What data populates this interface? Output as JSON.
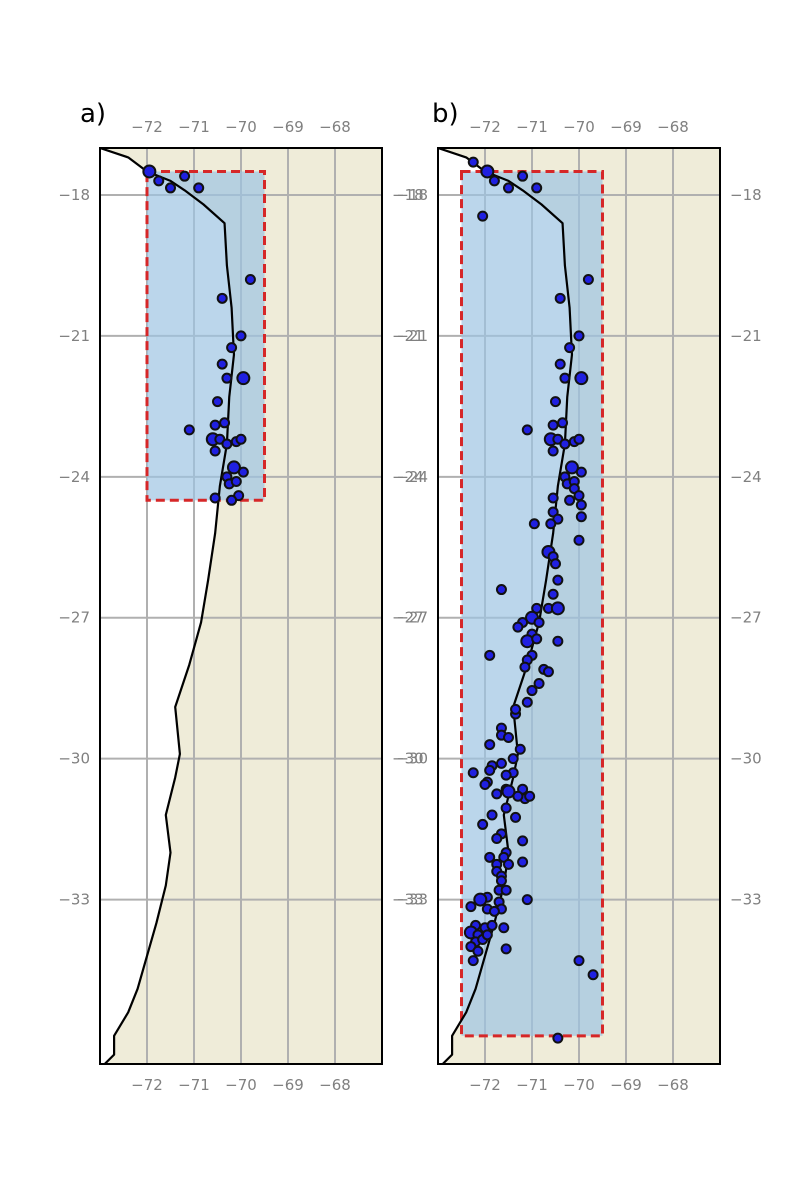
{
  "colors": {
    "land": "#efecd9",
    "region_fill": "#9ec4e3",
    "region_edge": "#d62728",
    "quake_fill": "#2020e0",
    "grid": "#b0b0b0",
    "tick": "#808080"
  },
  "map_extent": {
    "lon": [
      -73.0,
      -67.0
    ],
    "lat": [
      -36.5,
      -17.0
    ]
  },
  "gridlines": {
    "lon": [
      -72,
      -71,
      -70,
      -69,
      -68
    ],
    "lat": [
      -18,
      -21,
      -24,
      -27,
      -30,
      -33
    ]
  },
  "lon_tick_labels": [
    "−72",
    "−71",
    "−70",
    "−69",
    "−68"
  ],
  "lat_tick_labels": [
    "−18",
    "−21",
    "−24",
    "−27",
    "−30",
    "−33"
  ],
  "coastline": [
    [
      -73.0,
      -17.0
    ],
    [
      -72.4,
      -17.2
    ],
    [
      -72.0,
      -17.5
    ],
    [
      -71.5,
      -17.7
    ],
    [
      -71.2,
      -17.9
    ],
    [
      -70.8,
      -18.2
    ],
    [
      -70.35,
      -18.6
    ],
    [
      -70.3,
      -19.5
    ],
    [
      -70.2,
      -20.4
    ],
    [
      -70.15,
      -21.4
    ],
    [
      -70.25,
      -22.3
    ],
    [
      -70.3,
      -23.3
    ],
    [
      -70.45,
      -24.2
    ],
    [
      -70.55,
      -25.2
    ],
    [
      -70.7,
      -26.2
    ],
    [
      -70.85,
      -27.1
    ],
    [
      -71.1,
      -28.0
    ],
    [
      -71.4,
      -28.9
    ],
    [
      -71.3,
      -29.9
    ],
    [
      -71.4,
      -30.4
    ],
    [
      -71.6,
      -31.2
    ],
    [
      -71.5,
      -32.0
    ],
    [
      -71.6,
      -32.7
    ],
    [
      -71.8,
      -33.5
    ],
    [
      -72.0,
      -34.2
    ],
    [
      -72.2,
      -34.9
    ],
    [
      -72.4,
      -35.4
    ],
    [
      -72.7,
      -35.9
    ],
    [
      -72.7,
      -36.3
    ],
    [
      -72.9,
      -36.5
    ]
  ],
  "panels": [
    {
      "label": "a)",
      "region": {
        "lon": [
          -72.0,
          -69.5
        ],
        "lat": [
          -24.5,
          -17.5
        ]
      },
      "events": [
        [
          -71.95,
          -17.5,
          2
        ],
        [
          -71.75,
          -17.7,
          1
        ],
        [
          -71.5,
          -17.85,
          1
        ],
        [
          -71.2,
          -17.6,
          1
        ],
        [
          -70.9,
          -17.85,
          1
        ],
        [
          -69.8,
          -19.8,
          1
        ],
        [
          -70.4,
          -20.2,
          1
        ],
        [
          -70.0,
          -21.0,
          1
        ],
        [
          -70.2,
          -21.25,
          1
        ],
        [
          -70.4,
          -21.6,
          1
        ],
        [
          -69.95,
          -21.9,
          2
        ],
        [
          -70.3,
          -21.9,
          1
        ],
        [
          -70.5,
          -22.4,
          1
        ],
        [
          -71.1,
          -23.0,
          1
        ],
        [
          -70.55,
          -22.9,
          1
        ],
        [
          -70.35,
          -22.85,
          1
        ],
        [
          -70.6,
          -23.2,
          2
        ],
        [
          -70.55,
          -23.45,
          1
        ],
        [
          -70.45,
          -23.2,
          1
        ],
        [
          -70.3,
          -23.3,
          1
        ],
        [
          -70.1,
          -23.25,
          1
        ],
        [
          -70.0,
          -23.2,
          1
        ],
        [
          -70.15,
          -23.8,
          2
        ],
        [
          -69.95,
          -23.9,
          1
        ],
        [
          -70.3,
          -24.0,
          1
        ],
        [
          -70.25,
          -24.15,
          1
        ],
        [
          -70.1,
          -24.1,
          1
        ],
        [
          -70.05,
          -24.4,
          1
        ],
        [
          -70.55,
          -24.45,
          1
        ],
        [
          -70.2,
          -24.5,
          1
        ]
      ]
    },
    {
      "label": "b)",
      "region": {
        "lon": [
          -72.5,
          -69.5
        ],
        "lat": [
          -35.9,
          -17.5
        ]
      },
      "events": [
        [
          -72.25,
          -17.3,
          1
        ],
        [
          -71.95,
          -17.5,
          2
        ],
        [
          -71.8,
          -17.7,
          1
        ],
        [
          -71.5,
          -17.85,
          1
        ],
        [
          -71.2,
          -17.6,
          1
        ],
        [
          -70.9,
          -17.85,
          1
        ],
        [
          -72.05,
          -18.45,
          1
        ],
        [
          -69.8,
          -19.8,
          1
        ],
        [
          -70.4,
          -20.2,
          1
        ],
        [
          -70.0,
          -21.0,
          1
        ],
        [
          -70.2,
          -21.25,
          1
        ],
        [
          -70.4,
          -21.6,
          1
        ],
        [
          -69.95,
          -21.9,
          2
        ],
        [
          -70.3,
          -21.9,
          1
        ],
        [
          -70.5,
          -22.4,
          1
        ],
        [
          -71.1,
          -23.0,
          1
        ],
        [
          -70.55,
          -22.9,
          1
        ],
        [
          -70.35,
          -22.85,
          1
        ],
        [
          -70.6,
          -23.2,
          2
        ],
        [
          -70.55,
          -23.45,
          1
        ],
        [
          -70.45,
          -23.2,
          1
        ],
        [
          -70.3,
          -23.3,
          1
        ],
        [
          -70.1,
          -23.25,
          1
        ],
        [
          -70.0,
          -23.2,
          1
        ],
        [
          -70.15,
          -23.8,
          2
        ],
        [
          -69.95,
          -23.9,
          1
        ],
        [
          -70.3,
          -24.0,
          1
        ],
        [
          -70.25,
          -24.15,
          1
        ],
        [
          -70.1,
          -24.1,
          1
        ],
        [
          -70.2,
          -24.5,
          1
        ],
        [
          -70.55,
          -24.45,
          1
        ],
        [
          -70.1,
          -24.25,
          1
        ],
        [
          -70.0,
          -24.4,
          1
        ],
        [
          -69.95,
          -24.6,
          1
        ],
        [
          -70.55,
          -24.75,
          1
        ],
        [
          -70.45,
          -24.9,
          1
        ],
        [
          -70.6,
          -25.0,
          1
        ],
        [
          -70.95,
          -25.0,
          1
        ],
        [
          -69.95,
          -24.85,
          1
        ],
        [
          -70.0,
          -25.35,
          1
        ],
        [
          -70.65,
          -25.6,
          2
        ],
        [
          -70.55,
          -25.7,
          1
        ],
        [
          -70.5,
          -25.85,
          1
        ],
        [
          -70.45,
          -26.2,
          1
        ],
        [
          -70.55,
          -26.5,
          1
        ],
        [
          -70.65,
          -26.8,
          1
        ],
        [
          -70.45,
          -26.8,
          2
        ],
        [
          -70.9,
          -26.8,
          1
        ],
        [
          -71.0,
          -27.0,
          2
        ],
        [
          -70.85,
          -27.1,
          1
        ],
        [
          -71.2,
          -27.1,
          1
        ],
        [
          -71.0,
          -27.35,
          1
        ],
        [
          -71.1,
          -27.5,
          2
        ],
        [
          -71.3,
          -27.2,
          1
        ],
        [
          -70.9,
          -27.45,
          1
        ],
        [
          -70.45,
          -27.5,
          1
        ],
        [
          -71.0,
          -27.8,
          1
        ],
        [
          -71.1,
          -27.9,
          1
        ],
        [
          -71.15,
          -28.05,
          1
        ],
        [
          -71.9,
          -27.8,
          1
        ],
        [
          -70.75,
          -28.1,
          1
        ],
        [
          -70.65,
          -28.15,
          1
        ],
        [
          -70.85,
          -28.4,
          1
        ],
        [
          -71.0,
          -28.55,
          1
        ],
        [
          -71.1,
          -28.8,
          1
        ],
        [
          -71.35,
          -29.05,
          1
        ],
        [
          -71.35,
          -28.95,
          1
        ],
        [
          -71.65,
          -26.4,
          1
        ],
        [
          -71.65,
          -29.35,
          1
        ],
        [
          -71.65,
          -29.5,
          1
        ],
        [
          -71.9,
          -29.7,
          1
        ],
        [
          -71.5,
          -29.55,
          1
        ],
        [
          -71.25,
          -29.8,
          1
        ],
        [
          -71.4,
          -30.0,
          1
        ],
        [
          -71.65,
          -30.1,
          1
        ],
        [
          -71.4,
          -30.3,
          1
        ],
        [
          -71.55,
          -30.35,
          1
        ],
        [
          -71.85,
          -30.15,
          1
        ],
        [
          -71.9,
          -30.25,
          1
        ],
        [
          -72.25,
          -30.3,
          1
        ],
        [
          -71.95,
          -30.5,
          1
        ],
        [
          -72.0,
          -30.55,
          1
        ],
        [
          -71.55,
          -30.65,
          1
        ],
        [
          -71.5,
          -30.7,
          2
        ],
        [
          -71.2,
          -30.65,
          1
        ],
        [
          -71.15,
          -30.85,
          1
        ],
        [
          -71.05,
          -30.8,
          1
        ],
        [
          -71.3,
          -30.8,
          1
        ],
        [
          -71.75,
          -30.75,
          1
        ],
        [
          -71.55,
          -31.05,
          1
        ],
        [
          -71.85,
          -31.2,
          1
        ],
        [
          -72.05,
          -31.4,
          1
        ],
        [
          -71.35,
          -31.25,
          1
        ],
        [
          -71.65,
          -31.6,
          1
        ],
        [
          -71.75,
          -31.7,
          1
        ],
        [
          -71.2,
          -31.75,
          1
        ],
        [
          -71.55,
          -32.0,
          1
        ],
        [
          -71.6,
          -32.1,
          1
        ],
        [
          -71.9,
          -32.1,
          1
        ],
        [
          -71.75,
          -32.25,
          1
        ],
        [
          -71.5,
          -32.25,
          1
        ],
        [
          -71.2,
          -32.2,
          1
        ],
        [
          -71.75,
          -32.4,
          1
        ],
        [
          -71.65,
          -32.5,
          1
        ],
        [
          -71.65,
          -32.6,
          1
        ],
        [
          -71.7,
          -32.8,
          1
        ],
        [
          -71.55,
          -32.8,
          1
        ],
        [
          -71.95,
          -32.95,
          1
        ],
        [
          -72.1,
          -33.0,
          2
        ],
        [
          -71.95,
          -33.2,
          1
        ],
        [
          -72.3,
          -33.15,
          1
        ],
        [
          -71.7,
          -33.05,
          1
        ],
        [
          -71.65,
          -33.2,
          1
        ],
        [
          -71.8,
          -33.25,
          1
        ],
        [
          -71.1,
          -33.0,
          1
        ],
        [
          -72.2,
          -33.55,
          1
        ],
        [
          -72.0,
          -33.6,
          1
        ],
        [
          -71.85,
          -33.55,
          1
        ],
        [
          -71.6,
          -33.6,
          1
        ],
        [
          -72.3,
          -33.7,
          2
        ],
        [
          -72.15,
          -33.75,
          1
        ],
        [
          -72.2,
          -33.9,
          1
        ],
        [
          -72.05,
          -33.85,
          1
        ],
        [
          -71.95,
          -33.75,
          1
        ],
        [
          -72.3,
          -34.0,
          1
        ],
        [
          -71.55,
          -34.05,
          1
        ],
        [
          -72.15,
          -34.1,
          1
        ],
        [
          -72.25,
          -34.3,
          1
        ],
        [
          -70.0,
          -34.3,
          1
        ],
        [
          -69.7,
          -34.6,
          1
        ],
        [
          -70.45,
          -35.95,
          1
        ]
      ]
    }
  ]
}
